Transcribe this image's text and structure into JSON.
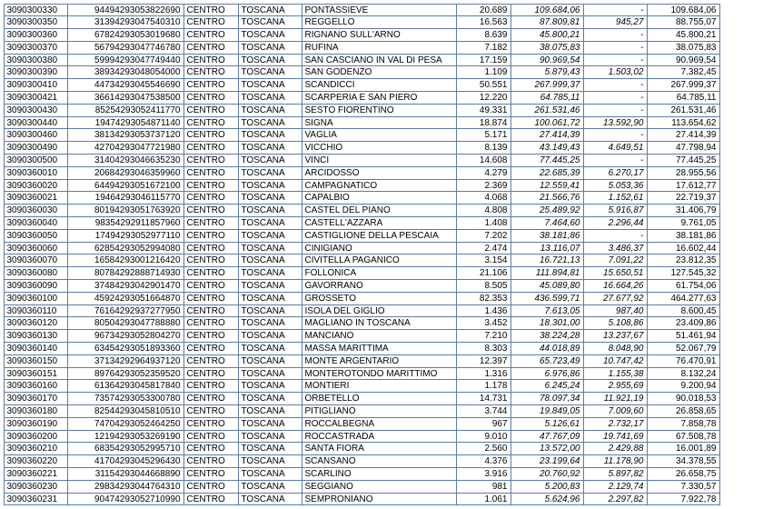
{
  "table": {
    "border_color": "#5b7ca3",
    "font_size": 10,
    "columns": [
      {
        "align": "left",
        "italic": false
      },
      {
        "align": "right",
        "italic": false
      },
      {
        "align": "left",
        "italic": false
      },
      {
        "align": "left",
        "italic": false
      },
      {
        "align": "left",
        "italic": false
      },
      {
        "align": "right",
        "italic": false
      },
      {
        "align": "right",
        "italic": true
      },
      {
        "align": "right",
        "italic": true
      },
      {
        "align": "right",
        "italic": false
      }
    ],
    "rows": [
      [
        "3090300330",
        "94494293053822690",
        "CENTRO",
        "TOSCANA",
        "PONTASSIEVE",
        "20.689",
        "109.684,06",
        "-",
        "109.684,06"
      ],
      [
        "3090300350",
        "31394293047540310",
        "CENTRO",
        "TOSCANA",
        "REGGELLO",
        "16.563",
        "87.809,81",
        "945,27",
        "88.755,07"
      ],
      [
        "3090300360",
        "67824293053019680",
        "CENTRO",
        "TOSCANA",
        "RIGNANO SULL'ARNO",
        "8.639",
        "45.800,21",
        "-",
        "45.800,21"
      ],
      [
        "3090300370",
        "56794293047746780",
        "CENTRO",
        "TOSCANA",
        "RUFINA",
        "7.182",
        "38.075,83",
        "-",
        "38.075,83"
      ],
      [
        "3090300380",
        "59994293047749440",
        "CENTRO",
        "TOSCANA",
        "SAN CASCIANO IN VAL DI PESA",
        "17.159",
        "90.969,54",
        "-",
        "90.969,54"
      ],
      [
        "3090300390",
        "38934293048054000",
        "CENTRO",
        "TOSCANA",
        "SAN GODENZO",
        "1.109",
        "5.879,43",
        "1.503,02",
        "7.382,45"
      ],
      [
        "3090300410",
        "44734293045546690",
        "CENTRO",
        "TOSCANA",
        "SCANDICCI",
        "50.551",
        "267.999,37",
        "-",
        "267.999,37"
      ],
      [
        "3090300421",
        "36614293047538500",
        "CENTRO",
        "TOSCANA",
        "SCARPERIA E SAN PIERO",
        "12.220",
        "64.785,11",
        "-",
        "64.785,11"
      ],
      [
        "3090300430",
        "85254293052411770",
        "CENTRO",
        "TOSCANA",
        "SESTO FIORENTINO",
        "49.331",
        "261.531,46",
        "-",
        "261.531,46"
      ],
      [
        "3090300440",
        "19474293054871140",
        "CENTRO",
        "TOSCANA",
        "SIGNA",
        "18.874",
        "100.061,72",
        "13.592,90",
        "113.654,62"
      ],
      [
        "3090300460",
        "38134293053737120",
        "CENTRO",
        "TOSCANA",
        "VAGLIA",
        "5.171",
        "27.414,39",
        "-",
        "27.414,39"
      ],
      [
        "3090300490",
        "42704293047721980",
        "CENTRO",
        "TOSCANA",
        "VICCHIO",
        "8.139",
        "43.149,43",
        "4.649,51",
        "47.798,94"
      ],
      [
        "3090300500",
        "31404293046635230",
        "CENTRO",
        "TOSCANA",
        "VINCI",
        "14.608",
        "77.445,25",
        "-",
        "77.445,25"
      ],
      [
        "3090360010",
        "20684293046359960",
        "CENTRO",
        "TOSCANA",
        "ARCIDOSSO",
        "4.279",
        "22.685,39",
        "6.270,17",
        "28.955,56"
      ],
      [
        "3090360020",
        "64494293051672100",
        "CENTRO",
        "TOSCANA",
        "CAMPAGNATICO",
        "2.369",
        "12.559,41",
        "5.053,36",
        "17.612,77"
      ],
      [
        "3090360021",
        "19464293046115770",
        "CENTRO",
        "TOSCANA",
        "CAPALBIO",
        "4.068",
        "21.566,76",
        "1.152,61",
        "22.719,37"
      ],
      [
        "3090360030",
        "80194293051763920",
        "CENTRO",
        "TOSCANA",
        "CASTEL DEL PIANO",
        "4.808",
        "25.489,92",
        "5.916,87",
        "31.406,79"
      ],
      [
        "3090360040",
        "98354292911857960",
        "CENTRO",
        "TOSCANA",
        "CASTELL'AZZARA",
        "1.408",
        "7.464,60",
        "2.296,44",
        "9.761,05"
      ],
      [
        "3090360050",
        "17494293052977110",
        "CENTRO",
        "TOSCANA",
        "CASTIGLIONE DELLA PESCAIA",
        "7.202",
        "38.181,86",
        "-",
        "38.181,86"
      ],
      [
        "3090360060",
        "62854293052994080",
        "CENTRO",
        "TOSCANA",
        "CINIGIANO",
        "2.474",
        "13.116,07",
        "3.486,37",
        "16.602,44"
      ],
      [
        "3090360070",
        "16584293001216420",
        "CENTRO",
        "TOSCANA",
        "CIVITELLA PAGANICO",
        "3.154",
        "16.721,13",
        "7.091,22",
        "23.812,35"
      ],
      [
        "3090360080",
        "80784292888714930",
        "CENTRO",
        "TOSCANA",
        "FOLLONICA",
        "21.106",
        "111.894,81",
        "15.650,51",
        "127.545,32"
      ],
      [
        "3090360090",
        "37484293042901470",
        "CENTRO",
        "TOSCANA",
        "GAVORRANO",
        "8.505",
        "45.089,80",
        "16.664,26",
        "61.754,06"
      ],
      [
        "3090360100",
        "45924293051664870",
        "CENTRO",
        "TOSCANA",
        "GROSSETO",
        "82.353",
        "436.599,71",
        "27.677,92",
        "464.277,63"
      ],
      [
        "3090360110",
        "76164292937277950",
        "CENTRO",
        "TOSCANA",
        "ISOLA DEL GIGLIO",
        "1.436",
        "7.613,05",
        "987,40",
        "8.600,45"
      ],
      [
        "3090360120",
        "80504293047788880",
        "CENTRO",
        "TOSCANA",
        "MAGLIANO IN TOSCANA",
        "3.452",
        "18.301,00",
        "5.108,86",
        "23.409,86"
      ],
      [
        "3090360130",
        "96734293052804270",
        "CENTRO",
        "TOSCANA",
        "MANCIANO",
        "7.210",
        "38.224,28",
        "13.237,67",
        "51.461,94"
      ],
      [
        "3090360140",
        "63454293051893360",
        "CENTRO",
        "TOSCANA",
        "MASSA MARITTIMA",
        "8.303",
        "44.018,89",
        "8.048,90",
        "52.067,79"
      ],
      [
        "3090360150",
        "37134292964937120",
        "CENTRO",
        "TOSCANA",
        "MONTE ARGENTARIO",
        "12.397",
        "65.723,49",
        "10.747,42",
        "76.470,91"
      ],
      [
        "3090360151",
        "89764293052359520",
        "CENTRO",
        "TOSCANA",
        "MONTEROTONDO MARITTIMO",
        "1.316",
        "6.976,86",
        "1.155,38",
        "8.132,24"
      ],
      [
        "3090360160",
        "61364293045817840",
        "CENTRO",
        "TOSCANA",
        "MONTIERI",
        "1.178",
        "6.245,24",
        "2.955,69",
        "9.200,94"
      ],
      [
        "3090360170",
        "73574293053300780",
        "CENTRO",
        "TOSCANA",
        "ORBETELLO",
        "14.731",
        "78.097,34",
        "11.921,19",
        "90.018,53"
      ],
      [
        "3090360180",
        "82544293045810510",
        "CENTRO",
        "TOSCANA",
        "PITIGLIANO",
        "3.744",
        "19.849,05",
        "7.009,60",
        "26.858,65"
      ],
      [
        "3090360190",
        "74704293052464250",
        "CENTRO",
        "TOSCANA",
        "ROCCALBEGNA",
        "967",
        "5.126,61",
        "2.732,17",
        "7.858,78"
      ],
      [
        "3090360200",
        "12194293053269190",
        "CENTRO",
        "TOSCANA",
        "ROCCASTRADA",
        "9.010",
        "47.767,09",
        "19.741,69",
        "67.508,78"
      ],
      [
        "3090360210",
        "68354293052995710",
        "CENTRO",
        "TOSCANA",
        "SANTA FIORA",
        "2.560",
        "13.572,00",
        "2.429,88",
        "16.001,89"
      ],
      [
        "3090360220",
        "41704293045296430",
        "CENTRO",
        "TOSCANA",
        "SCANSANO",
        "4.376",
        "23.199,64",
        "11.178,90",
        "34.378,55"
      ],
      [
        "3090360221",
        "31154293044668890",
        "CENTRO",
        "TOSCANA",
        "SCARLINO",
        "3.916",
        "20.760,92",
        "5.897,82",
        "26.658,75"
      ],
      [
        "3090360230",
        "29834293044764310",
        "CENTRO",
        "TOSCANA",
        "SEGGIANO",
        "981",
        "5.200,83",
        "2.129,74",
        "7.330,57"
      ],
      [
        "3090360231",
        "90474293052710990",
        "CENTRO",
        "TOSCANA",
        "SEMPRONIANO",
        "1.061",
        "5.624,96",
        "2.297,82",
        "7.922,78"
      ]
    ]
  }
}
